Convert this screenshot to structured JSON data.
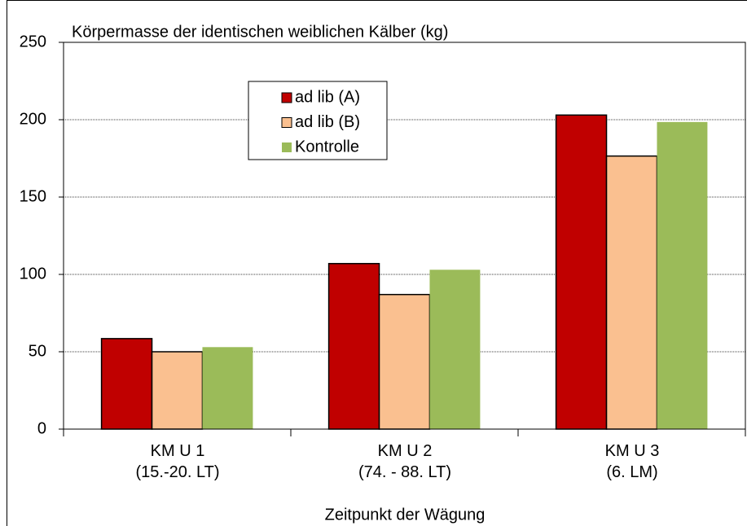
{
  "chart_data": {
    "type": "bar",
    "title": "Körpermasse der identischen weiblichen Kälber (kg)",
    "x_label": "Zeitpunkt der Wägung",
    "categories": [
      "KM U 1\n(15.-20. LT)",
      "KM U 2\n(74. - 88. LT)",
      "KM U 3\n(6. LM)"
    ],
    "series": [
      {
        "name": "ad lib (A)",
        "color": "#c00000",
        "values": [
          58.5,
          107,
          203
        ]
      },
      {
        "name": "ad lib (B)",
        "color": "#fac090",
        "values": [
          50,
          87,
          176.5
        ]
      },
      {
        "name": "Kontrolle",
        "color": "#9bbb59",
        "values": [
          53,
          103,
          198.5
        ]
      }
    ],
    "ylim": [
      0,
      250
    ],
    "yticks": [
      0,
      50,
      100,
      150,
      200,
      250
    ],
    "grid": true
  }
}
